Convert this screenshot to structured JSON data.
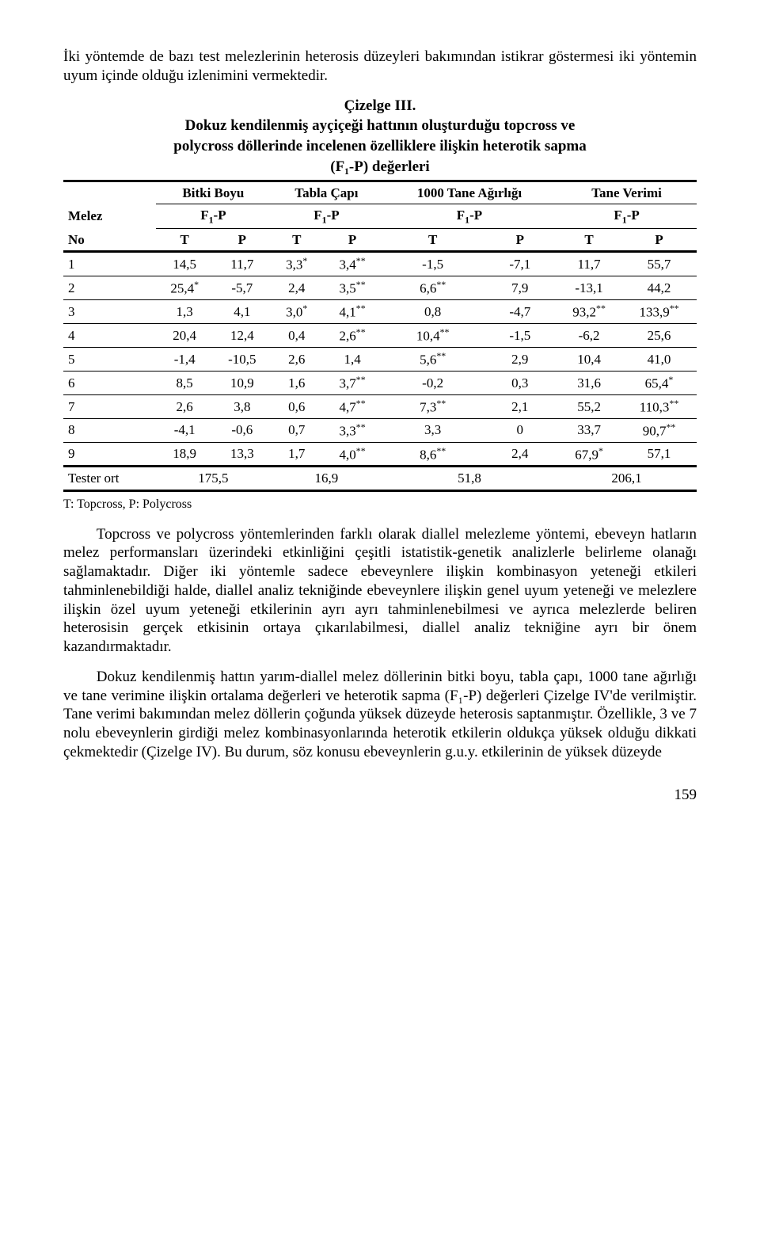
{
  "intro_para": "İki yöntemde de bazı test melezlerinin heterosis düzeyleri bakımından istikrar göstermesi iki yöntemin uyum içinde olduğu izlenimini vermektedir.",
  "table_label": "Çizelge III.",
  "table_title_line1": "Dokuz kendilenmiş ayçiçeği hattının oluşturduğu topcross ve",
  "table_title_line2": "polycross döllerinde incelenen özelliklere ilişkin heterotik sapma",
  "table_title_line3": "(F₁-P) değerleri",
  "group_headers": [
    "Bitki Boyu",
    "Tabla Çapı",
    "1000 Tane Ağırlığı",
    "Tane Verimi"
  ],
  "corner_melez": "Melez",
  "f1p": "F",
  "f1p_sub": "1",
  "f1p_tail": "-P",
  "corner_no": "No",
  "col_T": "T",
  "col_P": "P",
  "rows": [
    {
      "no": "1",
      "c": [
        "14,5",
        "11,7",
        "3,3*",
        "3,4**",
        "-1,5",
        "-7,1",
        "11,7",
        "55,7"
      ]
    },
    {
      "no": "2",
      "c": [
        "25,4*",
        "-5,7",
        "2,4",
        "3,5**",
        "6,6**",
        "7,9",
        "-13,1",
        "44,2"
      ]
    },
    {
      "no": "3",
      "c": [
        "1,3",
        "4,1",
        "3,0*",
        "4,1**",
        "0,8",
        "-4,7",
        "93,2**",
        "133,9**"
      ]
    },
    {
      "no": "4",
      "c": [
        "20,4",
        "12,4",
        "0,4",
        "2,6**",
        "10,4**",
        "-1,5",
        "-6,2",
        "25,6"
      ]
    },
    {
      "no": "5",
      "c": [
        "-1,4",
        "-10,5",
        "2,6",
        "1,4",
        "5,6**",
        "2,9",
        "10,4",
        "41,0"
      ]
    },
    {
      "no": "6",
      "c": [
        "8,5",
        "10,9",
        "1,6",
        "3,7**",
        "-0,2",
        "0,3",
        "31,6",
        "65,4*"
      ]
    },
    {
      "no": "7",
      "c": [
        "2,6",
        "3,8",
        "0,6",
        "4,7**",
        "7,3**",
        "2,1",
        "55,2",
        "110,3**"
      ]
    },
    {
      "no": "8",
      "c": [
        "-4,1",
        "-0,6",
        "0,7",
        "3,3**",
        "3,3",
        "0",
        "33,7",
        "90,7**"
      ]
    },
    {
      "no": "9",
      "c": [
        "18,9",
        "13,3",
        "1,7",
        "4,0**",
        "8,6**",
        "2,4",
        "67,9*",
        "57,1"
      ]
    }
  ],
  "tester_label": "Tester ort",
  "tester_vals": [
    "175,5",
    "16,9",
    "51,8",
    "206,1"
  ],
  "table_note": "T: Topcross, P: Polycross",
  "body_para1": "Topcross ve polycross yöntemlerinden farklı olarak diallel melezleme yöntemi, ebeveyn hatların melez performansları üzerindeki etkinliğini çeşitli istatistik-genetik analizlerle belirleme olanağı sağlamaktadır. Diğer iki yöntemle sadece ebeveynlere ilişkin kombinasyon yeteneği etkileri tahminlenebildiği halde, diallel analiz tekniğinde ebeveynlere ilişkin genel uyum yeteneği ve melezlere ilişkin özel uyum yeteneği etkilerinin ayrı ayrı tahminlenebilmesi ve ayrıca melezlerde beliren heterosisin gerçek etkisinin ortaya çıkarılabilmesi, diallel analiz tekniğine ayrı bir önem kazandırmaktadır.",
  "body_para2": "Dokuz kendilenmiş hattın yarım-diallel melez döllerinin bitki boyu, tabla çapı, 1000 tane ağırlığı ve tane verimine ilişkin ortalama değerleri ve heterotik sapma (F₁-P) değerleri Çizelge IV'de verilmiştir. Tane verimi bakımından melez döllerin çoğunda yüksek düzeyde heterosis saptanmıştır. Özellikle, 3 ve 7 nolu ebeveynlerin girdiği melez kombinasyonlarında heterotik etkilerin oldukça yüksek olduğu dikkati çekmektedir (Çizelge IV). Bu durum, söz konusu ebeveynlerin g.u.y. etkilerinin de yüksek düzeyde",
  "page_number": "159"
}
